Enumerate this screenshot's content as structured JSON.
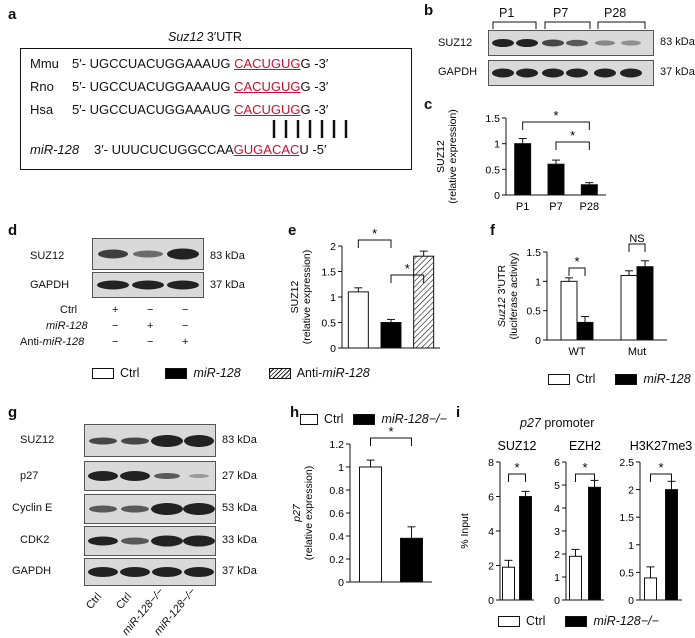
{
  "panels": {
    "a": "a",
    "b": "b",
    "c": "c",
    "d": "d",
    "e": "e",
    "f": "f",
    "g": "g",
    "h": "h",
    "i": "i"
  },
  "a": {
    "title_gene": "Suz12",
    "title_rest": " 3′UTR",
    "rows": [
      {
        "species": "Mmu",
        "pre": "5′- UGCCUACUGGAAAUG ",
        "site": "CACUGUG",
        "post": "G -3′"
      },
      {
        "species": "Rno",
        "pre": "5′- UGCCUACUGGAAAUG ",
        "site": "CACUGUG",
        "post": "G -3′"
      },
      {
        "species": "Hsa",
        "pre": "5′- UGCCUACUGGAAAUG ",
        "site": "CACUGUG",
        "post": "G -3′"
      }
    ],
    "mirna": {
      "name": "miR-128",
      "pre": "3′- UUUCUCUGGCCAA",
      "site": "GUGACAC",
      "post": "U -5′"
    }
  },
  "b": {
    "groups": [
      "P1",
      "P7",
      "P28"
    ],
    "rows": [
      {
        "label": "SUZ12",
        "size": "83 kDa"
      },
      {
        "label": "GAPDH",
        "size": "37 kDa"
      }
    ]
  },
  "d": {
    "rows": [
      {
        "label": "SUZ12",
        "size": "83 kDa"
      },
      {
        "label": "GAPDH",
        "size": "37 kDa"
      }
    ],
    "conditions": [
      {
        "label": "Ctrl",
        "marks": [
          "+",
          "−",
          "−"
        ]
      },
      {
        "label": "miR-128",
        "marks": [
          "−",
          "+",
          "−"
        ]
      },
      {
        "label": "Anti-miR-128",
        "marks": [
          "−",
          "−",
          "+"
        ]
      }
    ]
  },
  "g": {
    "rows": [
      {
        "label": "SUZ12",
        "size": "83 kDa"
      },
      {
        "label": "p27",
        "size": "27 kDa"
      },
      {
        "label": "Cyclin E",
        "size": "53 kDa"
      },
      {
        "label": "CDK2",
        "size": "33 kDa"
      },
      {
        "label": "GAPDH",
        "size": "37 kDa"
      }
    ],
    "lanes": [
      "Ctrl",
      "Ctrl",
      "miR-128−/−",
      "miR-128−/−"
    ]
  },
  "legend_e": {
    "ctrl": "Ctrl",
    "mir": "miR-128",
    "anti": "Anti-miR-128"
  },
  "legend_f": {
    "ctrl": "Ctrl",
    "mir": "miR-128"
  },
  "legend_h": {
    "ctrl": "Ctrl",
    "ko": "miR-128−/−"
  },
  "legend_i": {
    "ctrl": "Ctrl",
    "ko": "miR-128−/−"
  },
  "i_title": {
    "gene": "p27",
    "rest": " promoter"
  },
  "chart_data": [
    {
      "panel": "c",
      "type": "bar",
      "categories": [
        "P1",
        "P7",
        "P28"
      ],
      "values": [
        1.0,
        0.6,
        0.2
      ],
      "errors": [
        0.1,
        0.08,
        0.04
      ],
      "ylabel": "SUZ12\n(relative expression)",
      "ylim": [
        0,
        1.5
      ],
      "yticks": [
        0,
        0.5,
        1,
        1.5
      ],
      "fills": [
        "#000",
        "#000",
        "#000"
      ],
      "sig": [
        {
          "from": 0,
          "to": 2,
          "label": "*"
        },
        {
          "from": 1,
          "to": 2,
          "label": "*"
        }
      ]
    },
    {
      "panel": "e",
      "type": "bar",
      "categories": [
        "Ctrl",
        "miR-128",
        "Anti-miR-128"
      ],
      "values": [
        1.1,
        0.5,
        1.8
      ],
      "errors": [
        0.08,
        0.06,
        0.1
      ],
      "ylabel": "SUZ12\n(relative expression)",
      "ylim": [
        0,
        2
      ],
      "yticks": [
        0,
        0.5,
        1,
        1.5,
        2
      ],
      "fills": [
        "#fff",
        "#000",
        "hatch"
      ],
      "sig": [
        {
          "from": 0,
          "to": 1,
          "label": "*"
        },
        {
          "from": 1,
          "to": 2,
          "label": "*"
        }
      ]
    },
    {
      "panel": "f",
      "type": "bar",
      "categories": [
        "WT",
        "Mut"
      ],
      "series": [
        {
          "name": "Ctrl",
          "values": [
            1.0,
            1.1
          ]
        },
        {
          "name": "miR-128",
          "values": [
            0.3,
            1.25
          ]
        }
      ],
      "errors": [
        [
          0.06,
          0.08
        ],
        [
          0.1,
          0.1
        ]
      ],
      "ylabel": "Suz12 3′UTR\n(luciferase activity)",
      "ylim": [
        0,
        1.5
      ],
      "yticks": [
        0,
        0.5,
        1,
        1.5
      ],
      "sig": [
        {
          "group": 0,
          "label": "*"
        },
        {
          "group": 1,
          "label": "NS"
        }
      ]
    },
    {
      "panel": "h",
      "type": "bar",
      "categories": [
        "Ctrl",
        "miR-128−/−"
      ],
      "values": [
        1.0,
        0.38
      ],
      "errors": [
        0.06,
        0.1
      ],
      "ylabel": "p27\n(relative expression)",
      "ylim": [
        0,
        1.2
      ],
      "yticks": [
        0,
        0.2,
        0.4,
        0.6,
        0.8,
        1,
        1.2
      ],
      "fills": [
        "#fff",
        "#000"
      ],
      "sig": [
        {
          "from": 0,
          "to": 1,
          "label": "*"
        }
      ]
    },
    {
      "panel": "i1",
      "type": "bar",
      "title": "SUZ12",
      "categories": [
        "Ctrl",
        "miR-128−/−"
      ],
      "values": [
        1.9,
        6.0
      ],
      "errors": [
        0.4,
        0.3
      ],
      "ylabel": "% Input",
      "ylim": [
        0,
        8
      ],
      "yticks": [
        0,
        2,
        4,
        6,
        8
      ],
      "fills": [
        "#fff",
        "#000"
      ],
      "sig": [
        {
          "from": 0,
          "to": 1,
          "label": "*"
        }
      ]
    },
    {
      "panel": "i2",
      "type": "bar",
      "title": "EZH2",
      "categories": [
        "Ctrl",
        "miR-128−/−"
      ],
      "values": [
        1.9,
        4.9
      ],
      "errors": [
        0.3,
        0.3
      ],
      "ylim": [
        0,
        6
      ],
      "yticks": [
        0,
        1,
        2,
        3,
        4,
        5,
        6
      ],
      "fills": [
        "#fff",
        "#000"
      ],
      "sig": [
        {
          "from": 0,
          "to": 1,
          "label": "*"
        }
      ]
    },
    {
      "panel": "i3",
      "type": "bar",
      "title": "H3K27me3",
      "categories": [
        "Ctrl",
        "miR-128−/−"
      ],
      "values": [
        0.4,
        2.0
      ],
      "errors": [
        0.2,
        0.15
      ],
      "ylim": [
        0,
        2.5
      ],
      "yticks": [
        0,
        0.5,
        1,
        1.5,
        2,
        2.5
      ],
      "fills": [
        "#fff",
        "#000"
      ],
      "sig": [
        {
          "from": 0,
          "to": 1,
          "label": "*"
        }
      ]
    }
  ]
}
